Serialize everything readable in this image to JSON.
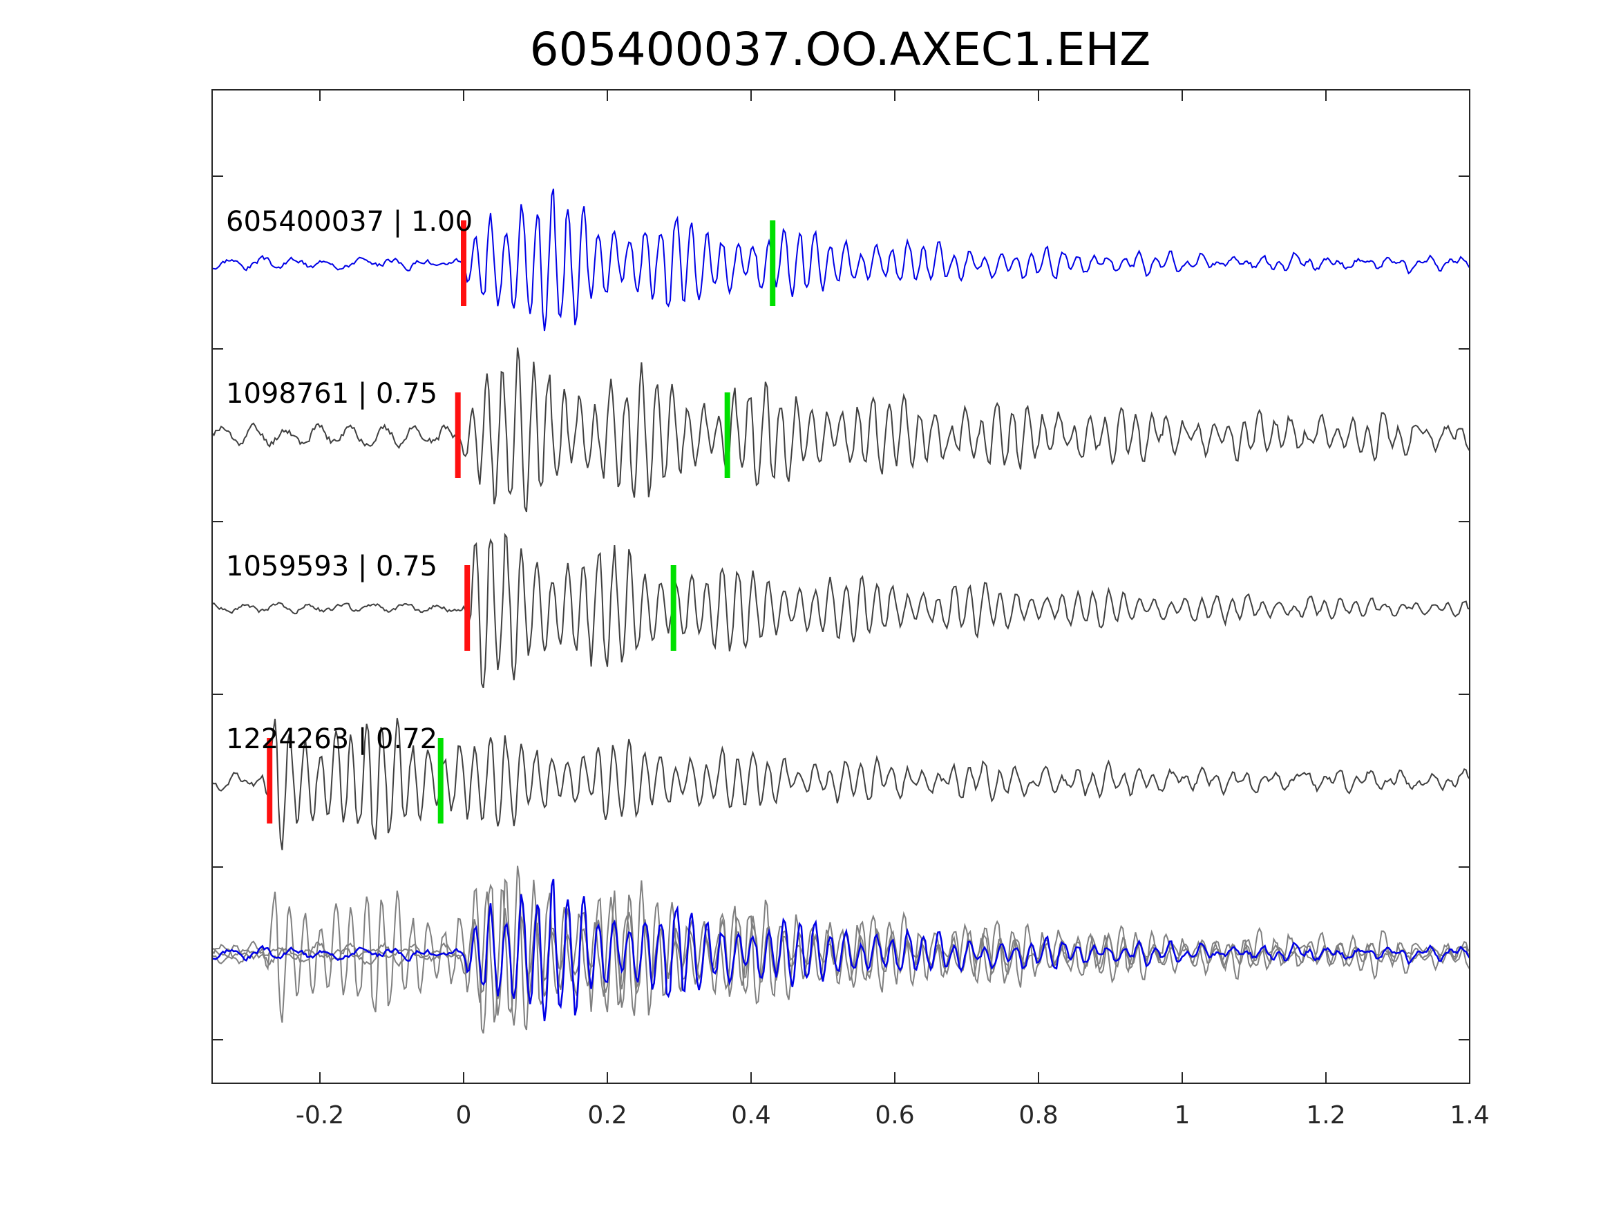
{
  "chart_data": {
    "type": "line",
    "title": "605400037.OO.AXEC1.EHZ",
    "xlabel": "",
    "ylabel": "",
    "xlim": [
      -0.35,
      1.4
    ],
    "xticks": [
      -0.2,
      0,
      0.2,
      0.4,
      0.6,
      0.8,
      1,
      1.2,
      1.4
    ],
    "xtick_labels": [
      "-0.2",
      "0",
      "0.2",
      "0.4",
      "0.6",
      "0.8",
      "1",
      "1.2",
      "1.4"
    ],
    "grid": false,
    "colors": {
      "reference": "#0000e6",
      "match": "#404040",
      "overlay_match": "#808080",
      "p_pick": "#ff1010",
      "s_pick": "#00e000",
      "axes": "#262626"
    },
    "traces": [
      {
        "label": "605400037 | 1.00",
        "color": "#0000e6",
        "p_pick": 0.0,
        "s_pick": 0.43,
        "onset": 0.0,
        "peak_time": 0.025,
        "amplitude": 1.0,
        "period": 0.0215,
        "decay": 0.42,
        "noise": 0.06,
        "seed": 3
      },
      {
        "label": "1098761 | 0.75",
        "color": "#404040",
        "p_pick": -0.008,
        "s_pick": 0.367,
        "onset": -0.005,
        "peak_time": 0.02,
        "amplitude": 0.95,
        "period": 0.0215,
        "decay": 0.75,
        "noise": 0.1,
        "seed": 11
      },
      {
        "label": "1059593 | 0.75",
        "color": "#404040",
        "p_pick": 0.005,
        "s_pick": 0.292,
        "onset": 0.0,
        "peak_time": 0.02,
        "amplitude": 0.95,
        "period": 0.0215,
        "decay": 0.55,
        "noise": 0.05,
        "seed": 19
      },
      {
        "label": "1224263 | 0.72",
        "color": "#404040",
        "p_pick": -0.27,
        "s_pick": -0.032,
        "onset": -0.28,
        "peak_time": -0.26,
        "amplitude": 0.9,
        "period": 0.0215,
        "decay": 0.6,
        "noise": 0.08,
        "seed": 27
      }
    ],
    "overlay": {
      "reference_trace": 0,
      "matched_traces": [
        1,
        2,
        3
      ]
    }
  }
}
